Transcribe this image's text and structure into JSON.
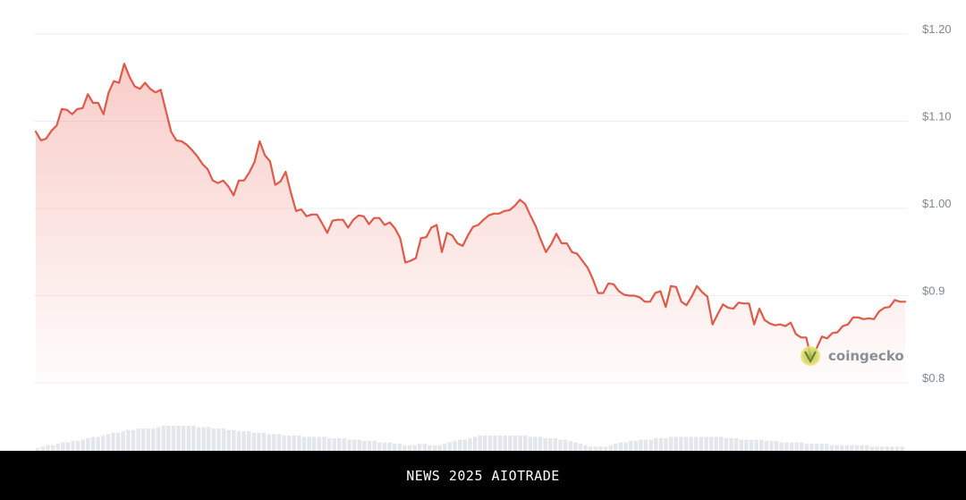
{
  "chart_data": {
    "type": "area",
    "title": "",
    "xlabel": "",
    "ylabel": "",
    "ylim": [
      0.8,
      1.2
    ],
    "y_ticks": [
      {
        "value": 1.2,
        "label": "$1.20"
      },
      {
        "value": 1.1,
        "label": "$1.10"
      },
      {
        "value": 1.0,
        "label": "$1.00"
      },
      {
        "value": 0.9,
        "label": "$0.9"
      },
      {
        "value": 0.8,
        "label": "$0.8"
      }
    ],
    "grid": true,
    "line_color": "#e05a4a",
    "fill_color": "#f3a49c",
    "series": [
      {
        "values": [
          1.088,
          1.078,
          1.08,
          1.089,
          1.095,
          1.114,
          1.113,
          1.108,
          1.114,
          1.115,
          1.131,
          1.121,
          1.121,
          1.108,
          1.133,
          1.146,
          1.144,
          1.166,
          1.151,
          1.14,
          1.137,
          1.144,
          1.137,
          1.133,
          1.136,
          1.112,
          1.088,
          1.078,
          1.077,
          1.073,
          1.067,
          1.06,
          1.051,
          1.045,
          1.032,
          1.029,
          1.032,
          1.025,
          1.015,
          1.032,
          1.032,
          1.041,
          1.053,
          1.077,
          1.061,
          1.054,
          1.027,
          1.031,
          1.042,
          1.018,
          0.997,
          0.999,
          0.991,
          0.993,
          0.993,
          0.983,
          0.972,
          0.986,
          0.987,
          0.987,
          0.978,
          0.987,
          0.992,
          0.991,
          0.982,
          0.989,
          0.989,
          0.981,
          0.984,
          0.977,
          0.966,
          0.938,
          0.94,
          0.943,
          0.966,
          0.967,
          0.978,
          0.981,
          0.95,
          0.972,
          0.969,
          0.96,
          0.957,
          0.969,
          0.979,
          0.981,
          0.987,
          0.992,
          0.994,
          0.994,
          0.997,
          0.998,
          1.003,
          1.01,
          1.005,
          0.992,
          0.98,
          0.964,
          0.95,
          0.959,
          0.971,
          0.96,
          0.96,
          0.95,
          0.948,
          0.94,
          0.932,
          0.919,
          0.903,
          0.903,
          0.914,
          0.913,
          0.905,
          0.901,
          0.9,
          0.9,
          0.898,
          0.893,
          0.893,
          0.903,
          0.905,
          0.887,
          0.911,
          0.91,
          0.893,
          0.889,
          0.899,
          0.911,
          0.904,
          0.899,
          0.867,
          0.879,
          0.89,
          0.886,
          0.885,
          0.892,
          0.891,
          0.891,
          0.867,
          0.885,
          0.872,
          0.868,
          0.866,
          0.867,
          0.865,
          0.869,
          0.856,
          0.852,
          0.852,
          0.826,
          0.84,
          0.853,
          0.851,
          0.857,
          0.858,
          0.865,
          0.867,
          0.875,
          0.875,
          0.873,
          0.874,
          0.873,
          0.882,
          0.886,
          0.887,
          0.895,
          0.893,
          0.893
        ]
      }
    ],
    "volume_values": [
      2,
      3,
      4,
      4,
      5,
      6,
      6,
      7,
      7,
      8,
      9,
      10,
      10,
      11,
      12,
      13,
      13,
      14,
      15,
      15,
      16,
      16,
      16,
      16,
      17,
      18,
      18,
      18,
      18,
      18,
      18,
      18,
      17,
      17,
      17,
      16,
      16,
      16,
      15,
      15,
      14,
      14,
      14,
      13,
      13,
      13,
      12,
      12,
      12,
      11,
      11,
      11,
      11,
      10,
      10,
      10,
      10,
      10,
      9,
      9,
      9,
      9,
      8,
      8,
      8,
      7,
      7,
      7,
      6,
      6,
      6,
      5,
      5,
      4,
      4,
      4,
      5,
      5,
      4,
      4,
      4,
      5,
      6,
      7,
      8,
      8,
      9,
      10,
      11,
      11,
      11,
      11,
      11,
      11,
      11,
      11,
      11,
      11,
      10,
      10,
      10,
      9,
      9,
      9,
      8,
      8,
      7,
      6,
      5,
      4,
      3,
      3,
      3,
      3,
      4,
      5,
      6,
      6,
      7,
      7,
      8,
      8,
      8,
      9,
      9,
      9,
      10,
      10,
      10,
      10,
      10,
      10,
      10,
      10,
      10,
      10,
      10,
      9,
      9,
      9,
      8,
      8,
      8,
      8,
      8,
      7,
      7,
      7,
      6,
      6,
      6,
      6,
      6,
      5,
      5,
      5,
      5,
      5,
      4,
      4,
      4,
      4,
      4,
      4,
      4,
      4,
      3,
      3,
      3,
      3,
      3,
      3,
      3
    ]
  },
  "watermark": {
    "brand": "coingecko",
    "icon": "coingecko-logo-icon"
  },
  "footer": {
    "text": "NEWS 2025 AIOTRADE"
  }
}
